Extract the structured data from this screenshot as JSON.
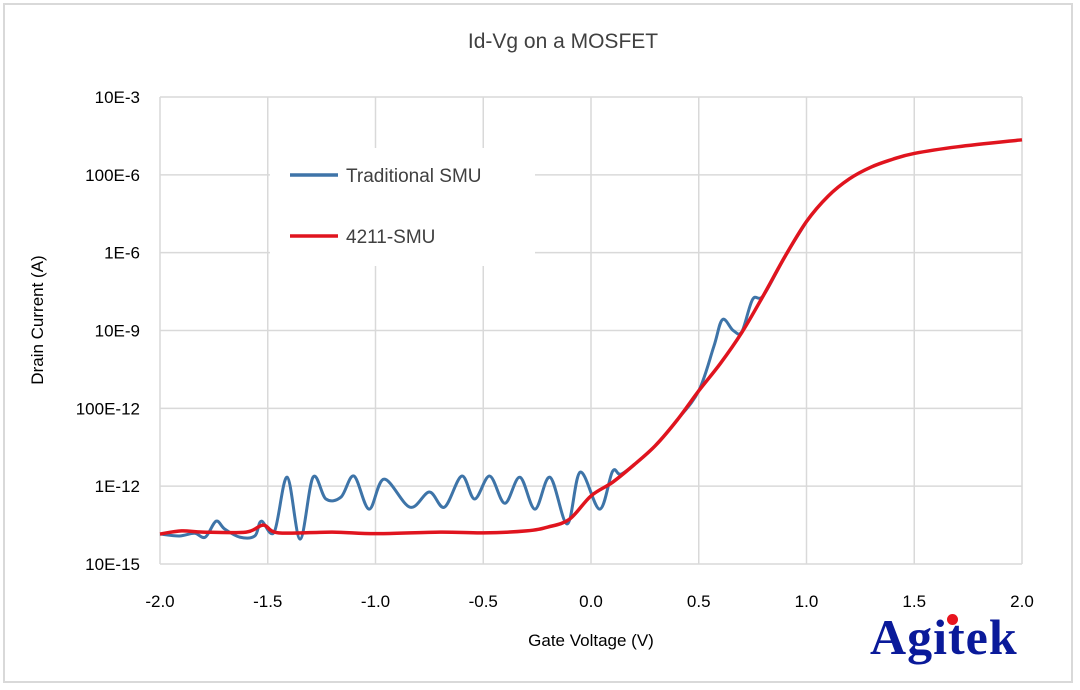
{
  "chart_data": {
    "type": "line",
    "title": "Id-Vg on a MOSFET",
    "xlabel": "Gate Voltage (V)",
    "ylabel": "Drain Current (A)",
    "xlim": [
      -2.0,
      2.0
    ],
    "ylim_log10": [
      -14,
      -2
    ],
    "y_scale": "log",
    "grid": true,
    "legend_position": "top-left",
    "x_ticks": [
      "-2.0",
      "-1.5",
      "-1.0",
      "-0.5",
      "0.0",
      "0.5",
      "1.0",
      "1.5",
      "2.0"
    ],
    "y_ticks": [
      "10E-15",
      "1E-12",
      "100E-12",
      "10E-9",
      "1E-6",
      "100E-6",
      "10E-3"
    ],
    "series": [
      {
        "name": "Traditional SMU",
        "color": "#3e74a8",
        "x": [
          -2.0,
          -1.91,
          -1.84,
          -1.79,
          -1.74,
          -1.7,
          -1.63,
          -1.56,
          -1.53,
          -1.47,
          -1.41,
          -1.35,
          -1.29,
          -1.23,
          -1.16,
          -1.1,
          -1.03,
          -0.96,
          -0.84,
          -0.75,
          -0.68,
          -0.6,
          -0.54,
          -0.47,
          -0.4,
          -0.33,
          -0.26,
          -0.19,
          -0.11,
          -0.05,
          0.04,
          0.1,
          0.14,
          0.23,
          0.3,
          0.4,
          0.5,
          0.57,
          0.61,
          0.66,
          0.7,
          0.75,
          0.8,
          0.9,
          1.0
        ],
        "y_log10": [
          -13.23,
          -13.28,
          -13.21,
          -13.31,
          -12.9,
          -13.1,
          -13.31,
          -13.28,
          -12.9,
          -13.18,
          -11.77,
          -13.36,
          -11.77,
          -12.33,
          -12.28,
          -11.74,
          -12.59,
          -11.82,
          -12.54,
          -12.15,
          -12.54,
          -11.74,
          -12.33,
          -11.74,
          -12.44,
          -11.77,
          -12.59,
          -11.77,
          -12.97,
          -11.64,
          -12.59,
          -11.62,
          -11.69,
          -11.31,
          -10.95,
          -10.3,
          -9.55,
          -8.41,
          -7.72,
          -8.0,
          -8.03,
          -7.2,
          -7.1,
          -6.1,
          -5.2
        ]
      },
      {
        "name": "4211-SMU",
        "color": "#e0141e",
        "x": [
          -2.0,
          -1.9,
          -1.8,
          -1.6,
          -1.52,
          -1.45,
          -1.2,
          -1.0,
          -0.7,
          -0.5,
          -0.3,
          -0.2,
          -0.1,
          0.0,
          0.1,
          0.2,
          0.3,
          0.4,
          0.5,
          0.6,
          0.7,
          0.8,
          0.9,
          1.0,
          1.1,
          1.2,
          1.3,
          1.4,
          1.5,
          1.7,
          2.0
        ],
        "y_log10": [
          -13.23,
          -13.15,
          -13.18,
          -13.18,
          -13.0,
          -13.2,
          -13.18,
          -13.22,
          -13.18,
          -13.2,
          -13.15,
          -13.05,
          -12.85,
          -12.25,
          -11.9,
          -11.45,
          -10.95,
          -10.3,
          -9.55,
          -8.85,
          -8.05,
          -7.1,
          -6.1,
          -5.2,
          -4.55,
          -4.1,
          -3.8,
          -3.6,
          -3.45,
          -3.28,
          -3.1
        ]
      }
    ]
  },
  "logo": "Agitek"
}
